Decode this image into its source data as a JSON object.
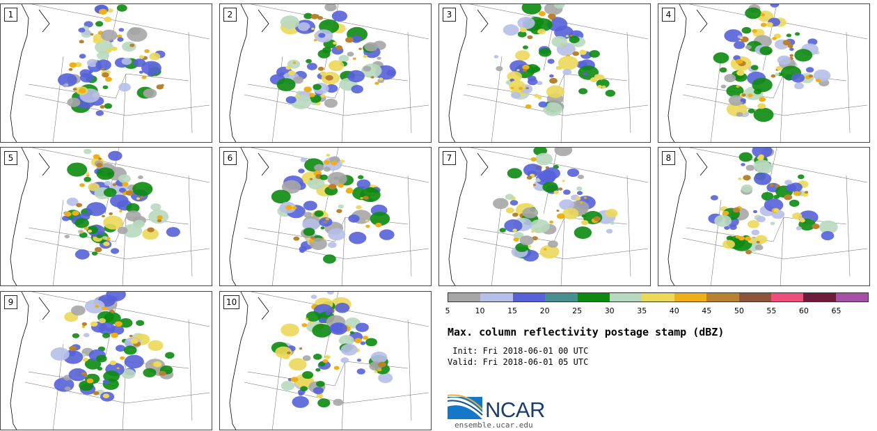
{
  "panels": [
    {
      "label": "1"
    },
    {
      "label": "2"
    },
    {
      "label": "3"
    },
    {
      "label": "4"
    },
    {
      "label": "5"
    },
    {
      "label": "6"
    },
    {
      "label": "7"
    },
    {
      "label": "8"
    },
    {
      "label": "9"
    },
    {
      "label": "10"
    }
  ],
  "colorbar": {
    "colors": [
      "#a6a6a6",
      "#b6bfe8",
      "#5662d8",
      "#4a8f90",
      "#0c8a10",
      "#b8d8bf",
      "#ecd85a",
      "#edb019",
      "#b8822e",
      "#8e553a",
      "#ee4f78",
      "#6d1a3b",
      "#a64fa6"
    ],
    "ticks": [
      "5",
      "10",
      "15",
      "20",
      "25",
      "30",
      "35",
      "40",
      "45",
      "50",
      "55",
      "60",
      "65"
    ]
  },
  "title": "Max. column reflectivity postage stamp (dBZ)",
  "init_line": " Init: Fri 2018-06-01 00 UTC",
  "valid_line": "Valid: Fri 2018-06-01 05 UTC",
  "logo_text": "NCAR",
  "site": "ensemble.ucar.edu"
}
